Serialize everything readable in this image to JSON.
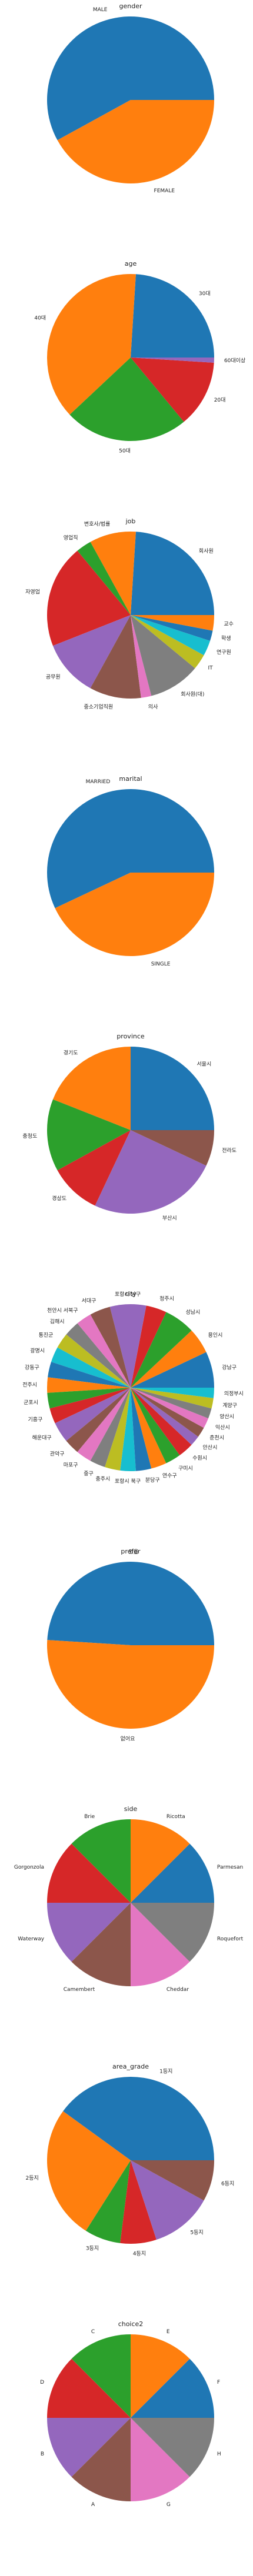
{
  "chart_data": [
    {
      "type": "pie",
      "title": "gender",
      "categories": [
        "MALE",
        "FEMALE"
      ],
      "values": [
        58,
        42
      ],
      "labels": [
        "MALE",
        "FEMALE"
      ]
    },
    {
      "type": "pie",
      "title": "age",
      "categories": [
        "30대",
        "40대",
        "50대",
        "20대",
        "60대이상"
      ],
      "values": [
        24,
        38,
        24,
        13,
        1
      ],
      "labels": [
        "30대",
        "40대",
        "50대",
        "20대",
        "60대이상"
      ]
    },
    {
      "type": "pie",
      "title": "job",
      "categories": [
        "회사원",
        "변호사/법률",
        "영업직",
        "자영업",
        "공무원",
        "중소기업직원",
        "의사",
        "회사원(대)",
        "IT",
        "연구원",
        "학생",
        "교수"
      ],
      "values": [
        24,
        9,
        3,
        20,
        11,
        10,
        2,
        10,
        3,
        3,
        2,
        3
      ],
      "labels": [
        "회사원",
        "변호사/법률",
        "영업직",
        "자영업",
        "공무원",
        "중소기업직원",
        "의사",
        "회사원(대)",
        "IT",
        "연구원",
        "학생",
        "교수"
      ]
    },
    {
      "type": "pie",
      "title": "marital",
      "categories": [
        "MARRIED",
        "SINGLE"
      ],
      "values": [
        57,
        43
      ],
      "labels": [
        "MARRIED",
        "SINGLE"
      ]
    },
    {
      "type": "pie",
      "title": "province",
      "categories": [
        "서울시",
        "경기도",
        "충청도",
        "경상도",
        "부산시",
        "전라도"
      ],
      "values": [
        25,
        19,
        14,
        10,
        25,
        7
      ],
      "labels": [
        "서울시",
        "경기도",
        "충청도",
        "경상도",
        "부산시",
        "전라도"
      ]
    },
    {
      "type": "pie",
      "title": "city",
      "categories": [
        "강남구",
        "용인시",
        "성남시",
        "청주시",
        "포항시 남구",
        "서대구",
        "천안시 서북구",
        "김해시",
        "통진군",
        "광명시",
        "강동구",
        "전주시",
        "군포시",
        "기흥구",
        "해운대구",
        "관악구",
        "마포구",
        "중구",
        "충주시",
        "포항시 북구",
        "분당구",
        "연수구",
        "구미시",
        "수원시",
        "안산시",
        "춘천시",
        "익산시",
        "양산시",
        "계양구",
        "의정부시"
      ],
      "values": [
        7,
        5,
        6,
        4,
        7,
        4,
        3,
        3,
        3,
        3,
        3,
        3,
        3,
        3,
        4,
        3,
        3,
        3,
        3,
        3,
        3,
        3,
        3,
        3,
        2,
        2,
        2,
        2,
        2,
        2
      ],
      "labels": [
        "강남구",
        "용인시",
        "성남시",
        "청주시",
        "포항시 남구",
        "서대구",
        "천안시 서북구",
        "김해시",
        "통진군",
        "광명시",
        "강동구",
        "전주시",
        "군포시",
        "기흥구",
        "해운대구",
        "관악구",
        "마포구",
        "중구",
        "충주시",
        "포항시 북구",
        "분당구",
        "연수구",
        "구미시",
        "수원시",
        "안산시",
        "춘천시",
        "익산시",
        "양산시",
        "계양구",
        "의정부시"
      ]
    },
    {
      "type": "pie",
      "title": "prefer",
      "categories": [
        "있음",
        "없어요"
      ],
      "values": [
        49,
        51
      ],
      "labels": [
        "있음",
        "없어요"
      ]
    },
    {
      "type": "pie",
      "title": "side",
      "categories": [
        "Parmesan",
        "Ricotta",
        "Brie",
        "Gorgonzola",
        "Waterway",
        "Camembert",
        "Cheddar",
        "Roquefort"
      ],
      "values": [
        12.5,
        12.5,
        12.5,
        12.5,
        12.5,
        12.5,
        12.5,
        12.5
      ],
      "labels": [
        "Parmesan",
        "Ricotta",
        "Brie",
        "Gorgonzola",
        "Waterway",
        "Camembert",
        "Cheddar",
        "Roquefort"
      ]
    },
    {
      "type": "pie",
      "title": "area_grade",
      "categories": [
        "1등지",
        "2등지",
        "3등지",
        "4등지",
        "5등지",
        "6등지"
      ],
      "values": [
        40,
        26,
        7,
        7,
        12,
        8
      ],
      "labels": [
        "1등지",
        "2등지",
        "3등지",
        "4등지",
        "5등지",
        "6등지"
      ]
    },
    {
      "type": "pie",
      "title": "choice2",
      "categories": [
        "F",
        "E",
        "C",
        "D",
        "B",
        "A",
        "G",
        "H"
      ],
      "values": [
        12.5,
        12.5,
        12.5,
        12.5,
        12.5,
        12.5,
        12.5,
        12.5
      ],
      "labels": [
        "F",
        "E",
        "C",
        "D",
        "B",
        "A",
        "G",
        "H"
      ]
    }
  ]
}
